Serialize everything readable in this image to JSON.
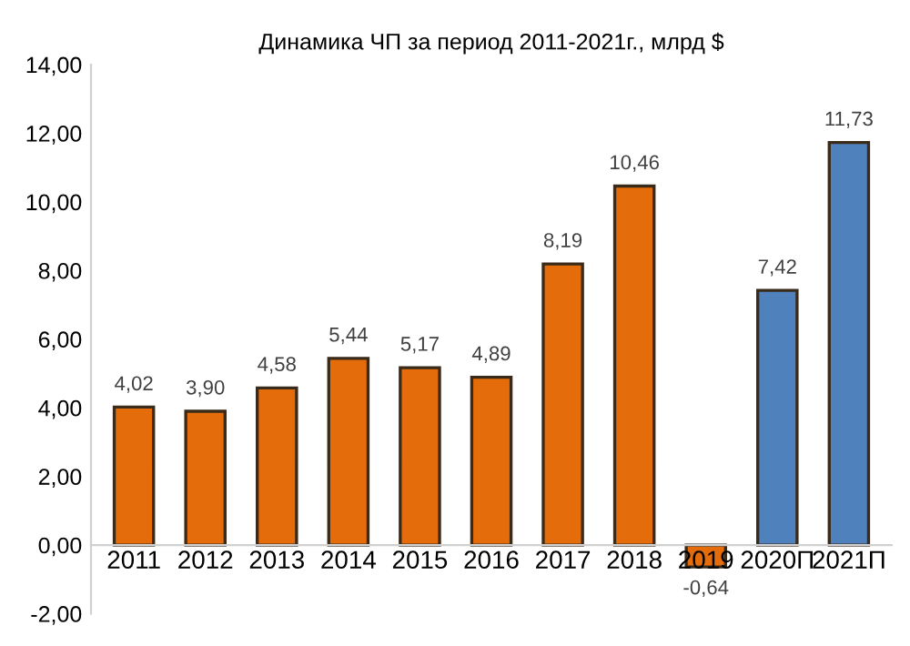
{
  "chart_data": {
    "type": "bar",
    "title": "Динамика ЧП за период 2011-2021г., млрд $",
    "categories": [
      "2011",
      "2012",
      "2013",
      "2014",
      "2015",
      "2016",
      "2017",
      "2018",
      "2019",
      "2020П",
      "2021П"
    ],
    "values": [
      4.02,
      3.9,
      4.58,
      5.44,
      5.17,
      4.89,
      8.19,
      10.46,
      -0.64,
      7.42,
      11.73
    ],
    "colors": [
      "#e46c0a",
      "#e46c0a",
      "#e46c0a",
      "#e46c0a",
      "#e46c0a",
      "#e46c0a",
      "#e46c0a",
      "#e46c0a",
      "#e46c0a",
      "#4f81bd",
      "#4f81bd"
    ],
    "value_labels": [
      "4,02",
      "3,90",
      "4,58",
      "5,44",
      "5,17",
      "4,89",
      "8,19",
      "10,46",
      "-0,64",
      "7,42",
      "11,73"
    ],
    "ylim": [
      -2,
      14
    ],
    "yticks": [
      {
        "value": -2,
        "label": "-2,00"
      },
      {
        "value": 0,
        "label": "0,00"
      },
      {
        "value": 2,
        "label": "2,00"
      },
      {
        "value": 4,
        "label": "4,00"
      },
      {
        "value": 6,
        "label": "6,00"
      },
      {
        "value": 8,
        "label": "8,00"
      },
      {
        "value": 10,
        "label": "10,00"
      },
      {
        "value": 12,
        "label": "12,00"
      },
      {
        "value": 14,
        "label": "14,00"
      }
    ],
    "grid": false,
    "legend": false
  }
}
